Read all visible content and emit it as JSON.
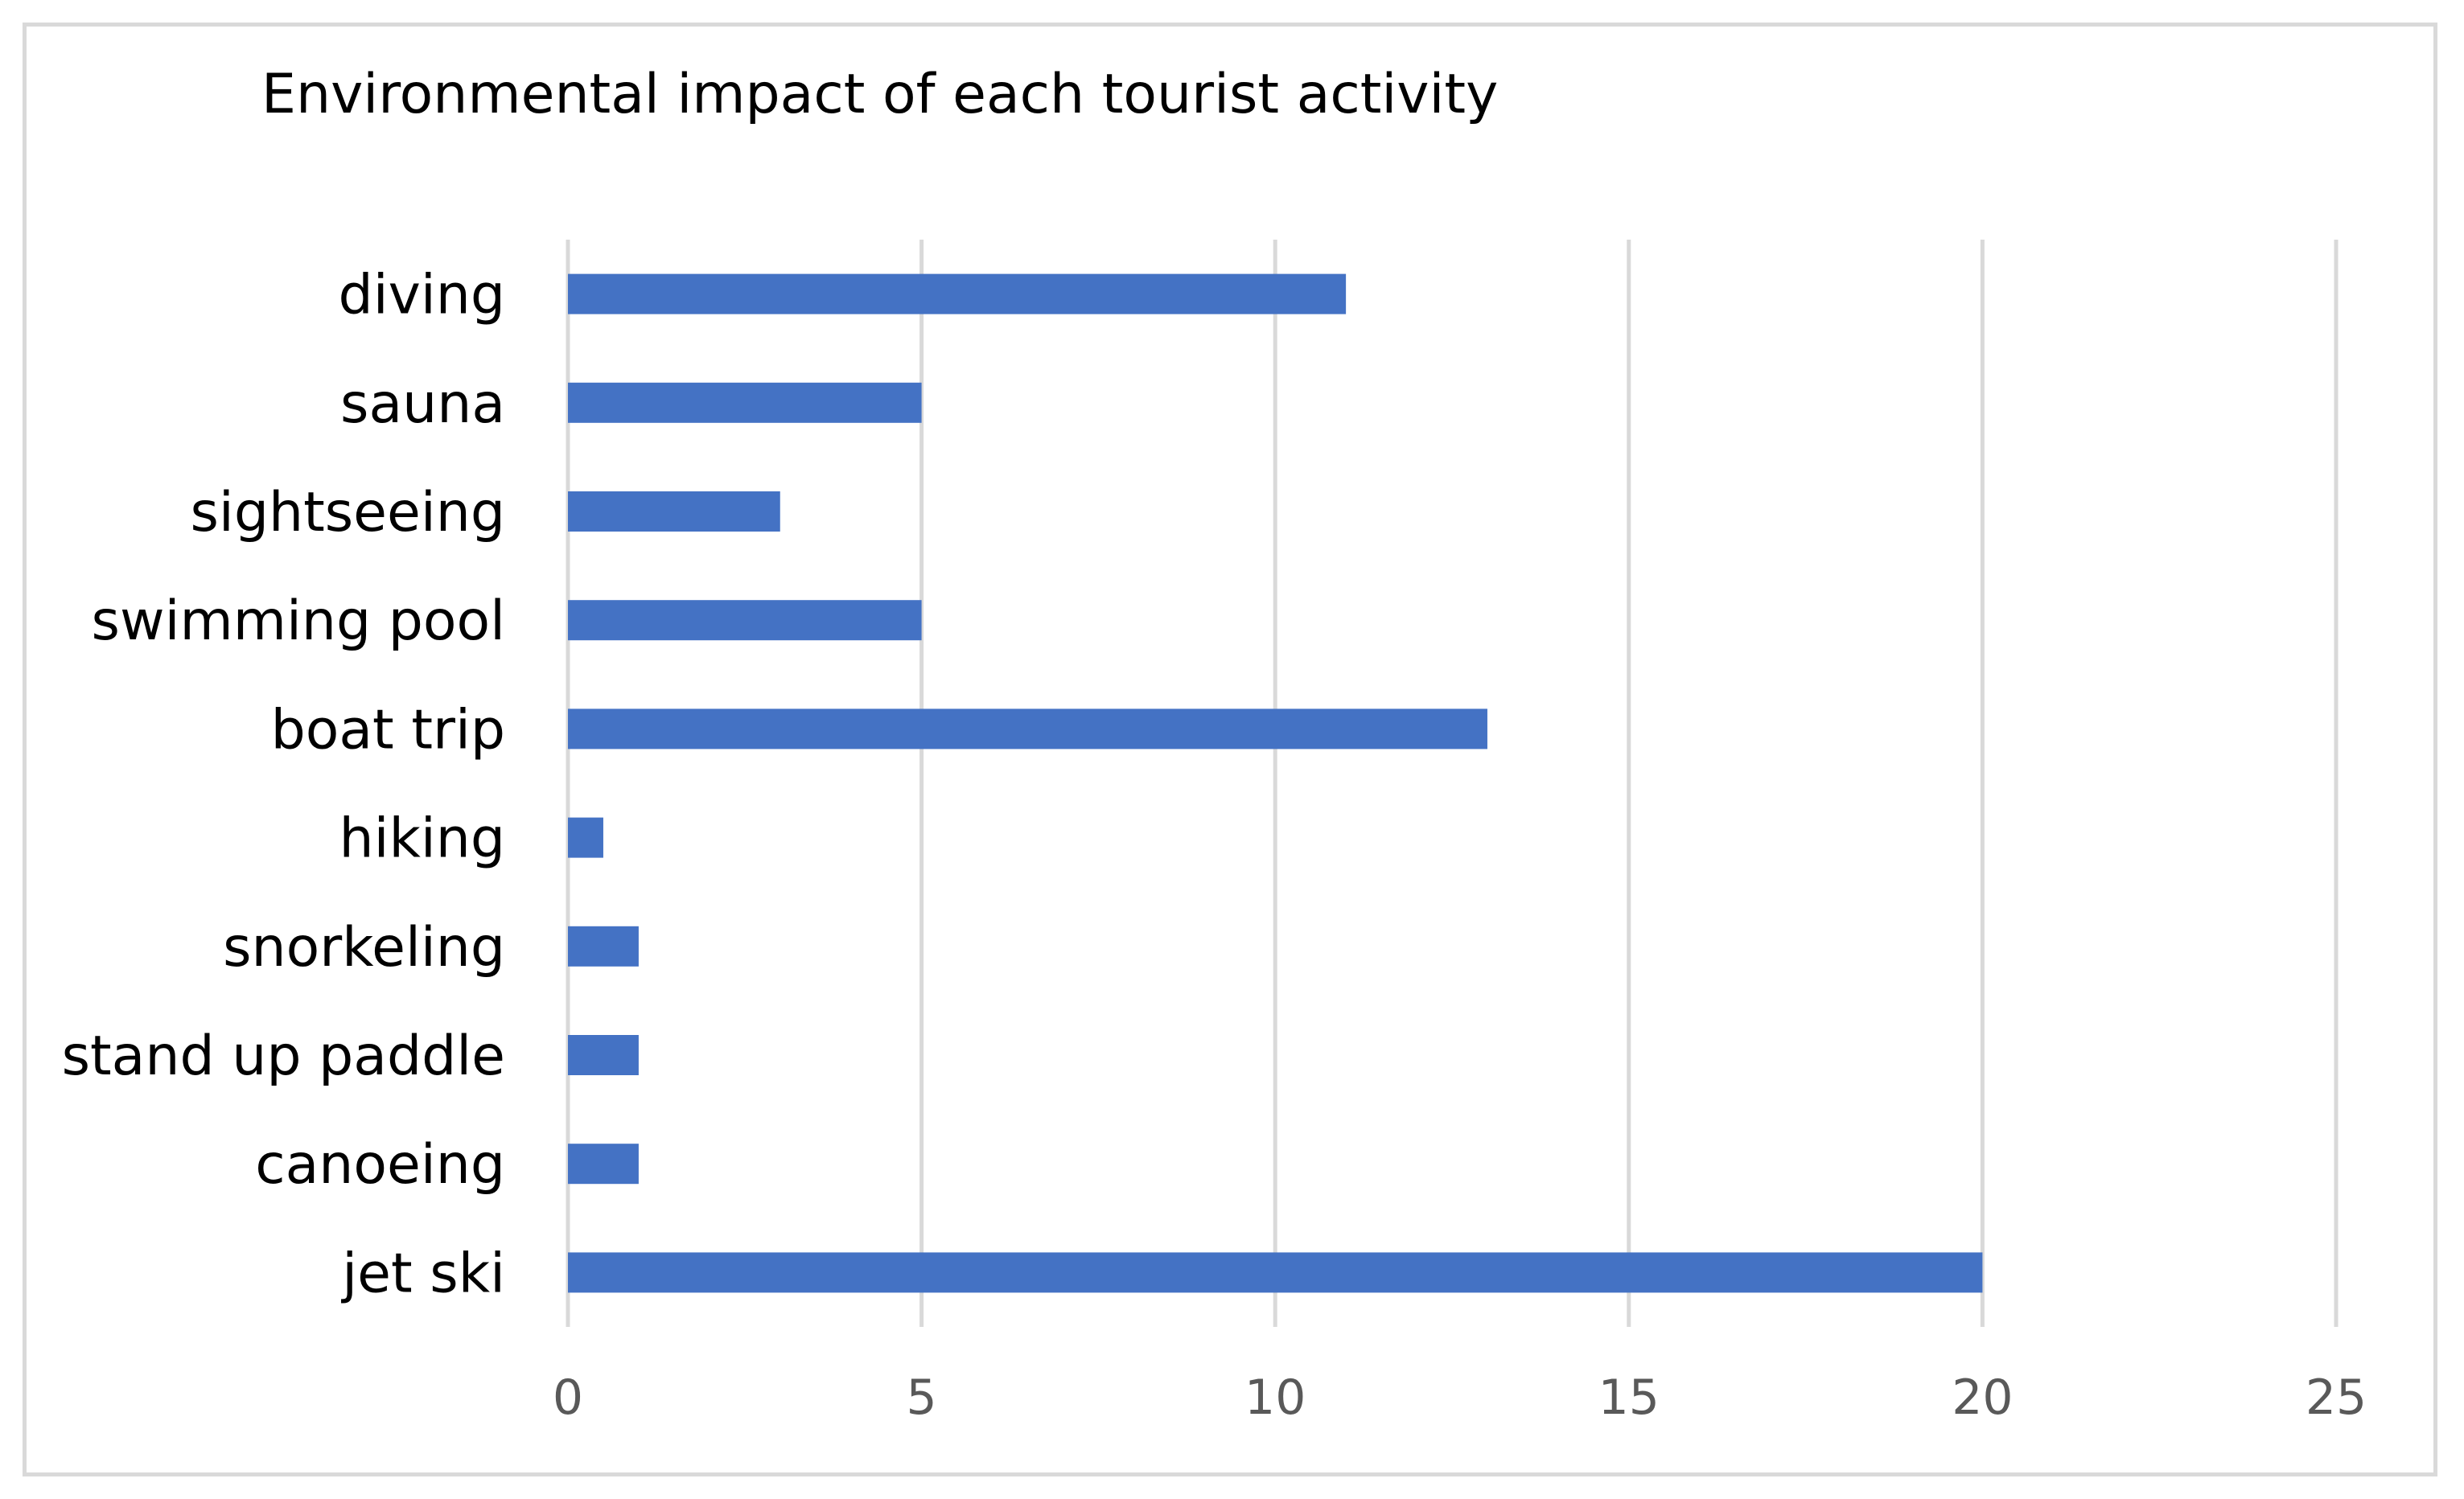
{
  "chart_data": {
    "type": "bar",
    "orientation": "horizontal",
    "title": "Environmental impact of each tourist activity",
    "xlabel": "",
    "ylabel": "",
    "categories": [
      "diving",
      "sauna",
      "sightseeing",
      "swimming pool",
      "boat trip",
      "hiking",
      "snorkeling",
      "stand up paddle",
      "canoeing",
      "jet ski"
    ],
    "values": [
      11,
      5,
      3,
      5,
      13,
      0.5,
      1,
      1,
      1,
      20
    ],
    "xlim": [
      0,
      25
    ],
    "xticks": [
      0,
      5,
      10,
      15,
      20,
      25
    ],
    "grid": "vertical",
    "legend": "none",
    "bar_color": "#4472C4",
    "grid_color": "#d9d9d9",
    "tick_label_color": "#595959"
  }
}
